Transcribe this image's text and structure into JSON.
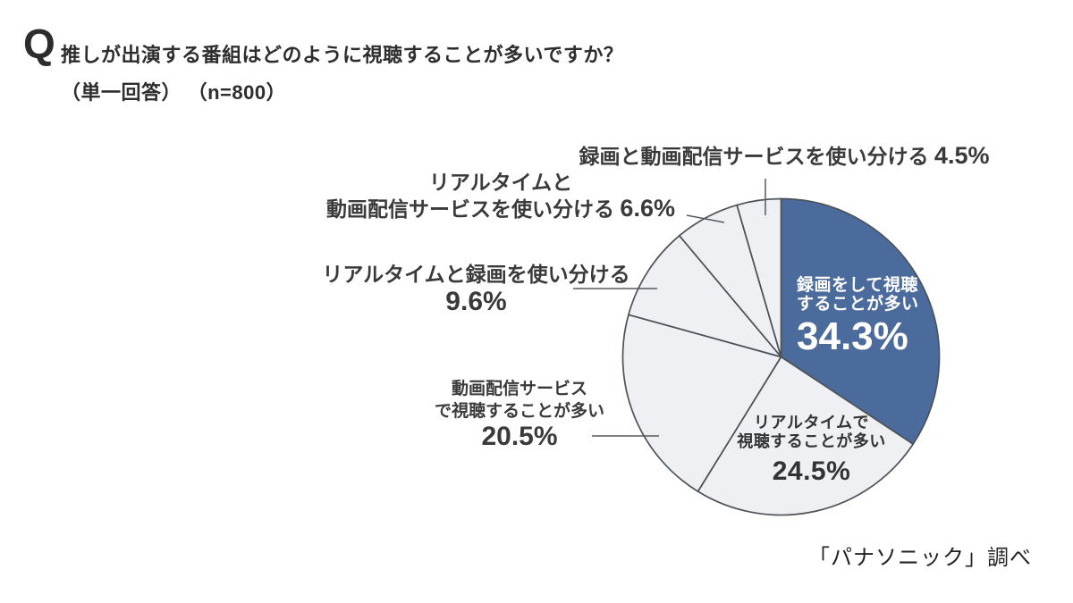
{
  "header": {
    "q_mark": "Q",
    "title": "推しが出演する番組はどのように視聴することが多いですか？",
    "subtitle": "（単一回答） （n=800）"
  },
  "source_note": "「パナソニック」調べ",
  "colors": {
    "accent_blue": "#4c6b9d",
    "slice_light": "#eef0f3",
    "slice_stroke": "#4d5257",
    "text_dark": "#3a3a3a",
    "text_on_blue": "#ffffff"
  },
  "chart_data": {
    "type": "pie",
    "title": "推しが出演する番組はどのように視聴することが多いですか？",
    "sample_note": "（単一回答）（n=800）",
    "n": 800,
    "unit": "%",
    "start_angle": "12-oclock",
    "direction": "clockwise",
    "legend_position": "callout-labels",
    "segments": [
      {
        "label": "録画をして視聴することが多い",
        "value": 34.3,
        "color": "#4c6b9d"
      },
      {
        "label": "リアルタイムで視聴することが多い",
        "value": 24.5,
        "color": "#eef0f3"
      },
      {
        "label": "動画配信サービスで視聴することが多い",
        "value": 20.5,
        "color": "#eef0f3"
      },
      {
        "label": "リアルタイムと録画を使い分ける",
        "value": 9.6,
        "color": "#eef0f3"
      },
      {
        "label": "リアルタイムと動画配信サービスを使い分ける",
        "value": 6.6,
        "color": "#eef0f3"
      },
      {
        "label": "録画と動画配信サービスを使い分ける",
        "value": 4.5,
        "color": "#eef0f3"
      }
    ],
    "source": "「パナソニック」調べ"
  },
  "labels": {
    "rec_inside": {
      "line1": "録画をして視聴",
      "line2": "することが多い",
      "pct": "34.3%"
    },
    "realtime_inside": {
      "line1": "リアルタイムで",
      "line2": "視聴することが多い",
      "pct": "24.5%"
    },
    "streaming": {
      "line1": "動画配信サービス",
      "line2": "で視聴することが多い",
      "pct": "20.5%"
    },
    "rt_rec": {
      "line1": "リアルタイムと録画を使い分ける",
      "pct": "9.6%"
    },
    "rt_stream": {
      "line1": "リアルタイムと",
      "line2": "動画配信サービスを使い分ける",
      "pct": "6.6%"
    },
    "rec_stream": {
      "line1": "録画と動画配信サービスを使い分ける",
      "pct": "4.5%"
    }
  }
}
